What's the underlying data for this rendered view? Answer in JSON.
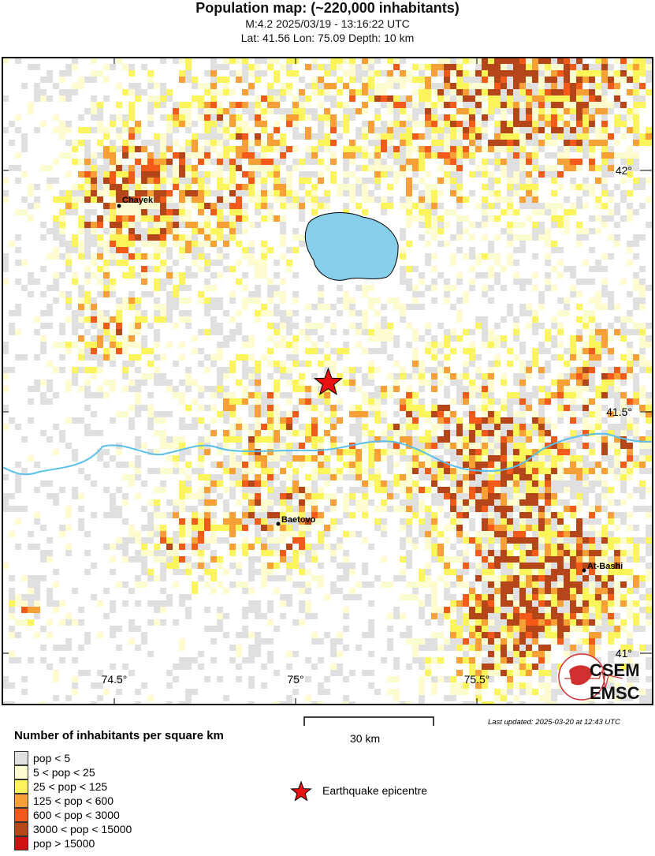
{
  "title": "Population map: (~220,000 inhabitants)",
  "subtitle_event": "M:4.2 2025/03/19 - 13:16:22 UTC",
  "subtitle_location": "Lat: 41.56 Lon: 75.09 Depth: 10 km",
  "map": {
    "lon_ticks": [
      "74.5°",
      "75°",
      "75.5°"
    ],
    "lat_ticks": [
      "42°",
      "41.5°",
      "41°"
    ],
    "epicentre": {
      "lat": 41.56,
      "lon": 75.09
    },
    "cities": [
      {
        "name": "Chayek"
      },
      {
        "name": "Baetovo"
      },
      {
        "name": "At-Bashi"
      }
    ],
    "water_color": "#87ceeb",
    "logo_text": [
      "CSEM",
      "EMSC"
    ]
  },
  "scale_label": "30 km",
  "last_updated": "Last updated: 2025-03-20 at 12:43 UTC",
  "legend": {
    "title": "Number of inhabitants per square km",
    "items": [
      {
        "label": "pop < 5",
        "color": "#e0e0e0"
      },
      {
        "label": "5 < pop < 25",
        "color": "#fdfbd0"
      },
      {
        "label": "25 < pop < 125",
        "color": "#fbf55a"
      },
      {
        "label": "125 < pop < 600",
        "color": "#f7a035"
      },
      {
        "label": "600 < pop < 3000",
        "color": "#f55a1a"
      },
      {
        "label": "3000 < pop < 15000",
        "color": "#b5461a"
      },
      {
        "label": "pop > 15000",
        "color": "#d01010"
      }
    ],
    "epicentre_label": "Earthquake epicentre"
  }
}
